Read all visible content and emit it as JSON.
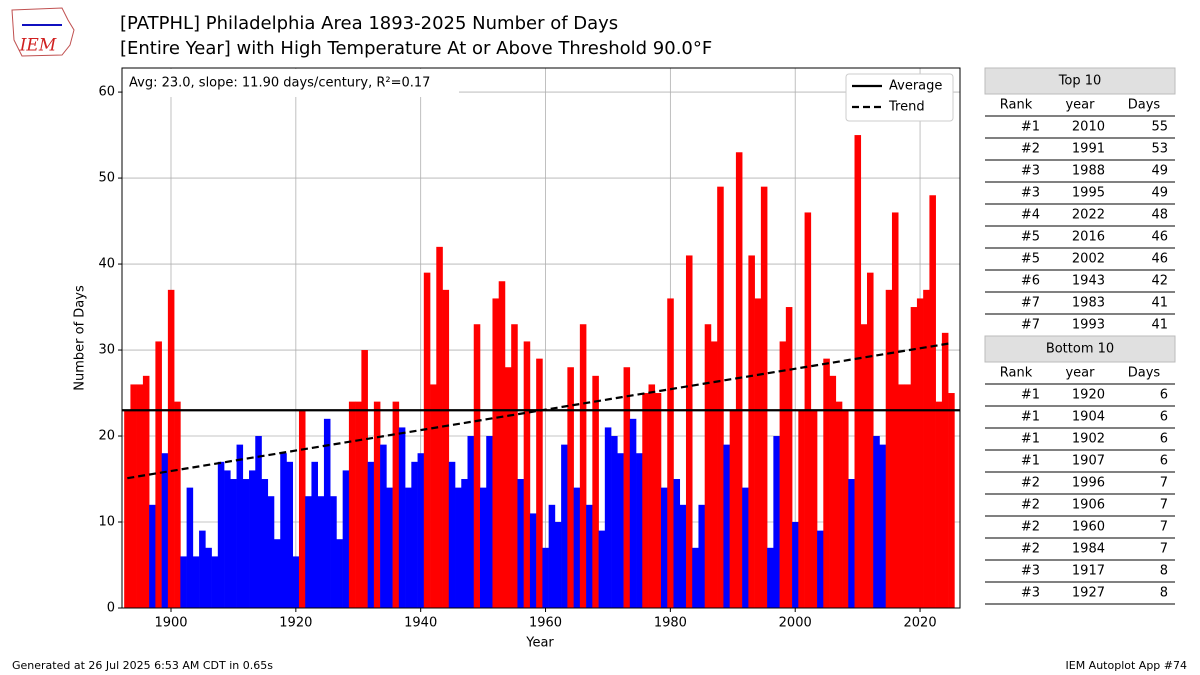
{
  "logo": "IEM",
  "chart_data": {
    "type": "bar",
    "title": "[PATPHL] Philadelphia Area 1893-2025 Number of Days",
    "subtitle": "[Entire Year] with High Temperature At or Above Threshold 90.0°F",
    "annotation": "Avg: 23.0, slope: 11.90 days/century, R²=0.17",
    "x_label": "Year",
    "y_label": "Number of Days",
    "x": [
      1893,
      1894,
      1895,
      1896,
      1897,
      1898,
      1899,
      1900,
      1901,
      1902,
      1903,
      1904,
      1905,
      1906,
      1907,
      1908,
      1909,
      1910,
      1911,
      1912,
      1913,
      1914,
      1915,
      1916,
      1917,
      1918,
      1919,
      1920,
      1921,
      1922,
      1923,
      1924,
      1925,
      1926,
      1927,
      1928,
      1929,
      1930,
      1931,
      1932,
      1933,
      1934,
      1935,
      1936,
      1937,
      1938,
      1939,
      1940,
      1941,
      1942,
      1943,
      1944,
      1945,
      1946,
      1947,
      1948,
      1949,
      1950,
      1951,
      1952,
      1953,
      1954,
      1955,
      1956,
      1957,
      1958,
      1959,
      1960,
      1961,
      1962,
      1963,
      1964,
      1965,
      1966,
      1967,
      1968,
      1969,
      1970,
      1971,
      1972,
      1973,
      1974,
      1975,
      1976,
      1977,
      1978,
      1979,
      1980,
      1981,
      1982,
      1983,
      1984,
      1985,
      1986,
      1987,
      1988,
      1989,
      1990,
      1991,
      1992,
      1993,
      1994,
      1995,
      1996,
      1997,
      1998,
      1999,
      2000,
      2001,
      2002,
      2003,
      2004,
      2005,
      2006,
      2007,
      2008,
      2009,
      2010,
      2011,
      2012,
      2013,
      2014,
      2015,
      2016,
      2017,
      2018,
      2019,
      2020,
      2021,
      2022,
      2023,
      2024,
      2025
    ],
    "values": [
      23,
      26,
      26,
      27,
      12,
      31,
      18,
      37,
      24,
      6,
      14,
      6,
      9,
      7,
      6,
      17,
      16,
      15,
      19,
      15,
      16,
      20,
      15,
      13,
      8,
      18,
      17,
      6,
      23,
      13,
      17,
      13,
      22,
      13,
      8,
      16,
      24,
      24,
      30,
      17,
      24,
      19,
      14,
      24,
      21,
      14,
      17,
      18,
      39,
      26,
      42,
      37,
      17,
      14,
      15,
      20,
      33,
      14,
      20,
      36,
      38,
      28,
      33,
      15,
      31,
      11,
      29,
      7,
      12,
      10,
      19,
      28,
      14,
      33,
      12,
      27,
      9,
      21,
      20,
      18,
      28,
      22,
      18,
      25,
      26,
      25,
      14,
      36,
      15,
      12,
      41,
      7,
      12,
      33,
      31,
      49,
      19,
      23,
      53,
      14,
      41,
      36,
      49,
      7,
      20,
      31,
      35,
      10,
      23,
      46,
      23,
      9,
      29,
      27,
      24,
      23,
      15,
      55,
      33,
      39,
      20,
      19,
      37,
      46,
      26,
      26,
      35,
      36,
      37,
      48,
      24,
      32,
      25
    ],
    "color_above": "#ff0000",
    "color_below": "#0000ff",
    "average": {
      "name": "Average",
      "value": 23.0
    },
    "trend": {
      "name": "Trend",
      "x": [
        1893,
        2025
      ],
      "values": [
        15.1,
        30.8
      ]
    },
    "xlim": [
      1892.15,
      2026.4
    ],
    "ylim": [
      0,
      62.8
    ],
    "xticks": [
      1900,
      1920,
      1940,
      1960,
      1980,
      2000,
      2020
    ],
    "yticks": [
      0,
      10,
      20,
      30,
      40,
      50,
      60
    ],
    "grid": true,
    "legend": "upper right"
  },
  "tables": [
    {
      "title": "Top 10",
      "header": [
        "Rank",
        "year",
        "Days"
      ],
      "rows": [
        [
          "#1",
          "2010",
          "55"
        ],
        [
          "#2",
          "1991",
          "53"
        ],
        [
          "#3",
          "1988",
          "49"
        ],
        [
          "#3",
          "1995",
          "49"
        ],
        [
          "#4",
          "2022",
          "48"
        ],
        [
          "#5",
          "2016",
          "46"
        ],
        [
          "#5",
          "2002",
          "46"
        ],
        [
          "#6",
          "1943",
          "42"
        ],
        [
          "#7",
          "1983",
          "41"
        ],
        [
          "#7",
          "1993",
          "41"
        ]
      ]
    },
    {
      "title": "Bottom 10",
      "header": [
        "Rank",
        "year",
        "Days"
      ],
      "rows": [
        [
          "#1",
          "1920",
          "6"
        ],
        [
          "#1",
          "1904",
          "6"
        ],
        [
          "#1",
          "1902",
          "6"
        ],
        [
          "#1",
          "1907",
          "6"
        ],
        [
          "#2",
          "1996",
          "7"
        ],
        [
          "#2",
          "1906",
          "7"
        ],
        [
          "#2",
          "1960",
          "7"
        ],
        [
          "#2",
          "1984",
          "7"
        ],
        [
          "#3",
          "1917",
          "8"
        ],
        [
          "#3",
          "1927",
          "8"
        ]
      ]
    }
  ],
  "footer": {
    "left": "Generated at 26 Jul 2025 6:53 AM CDT in 0.65s",
    "right": "IEM Autoplot App #74"
  }
}
